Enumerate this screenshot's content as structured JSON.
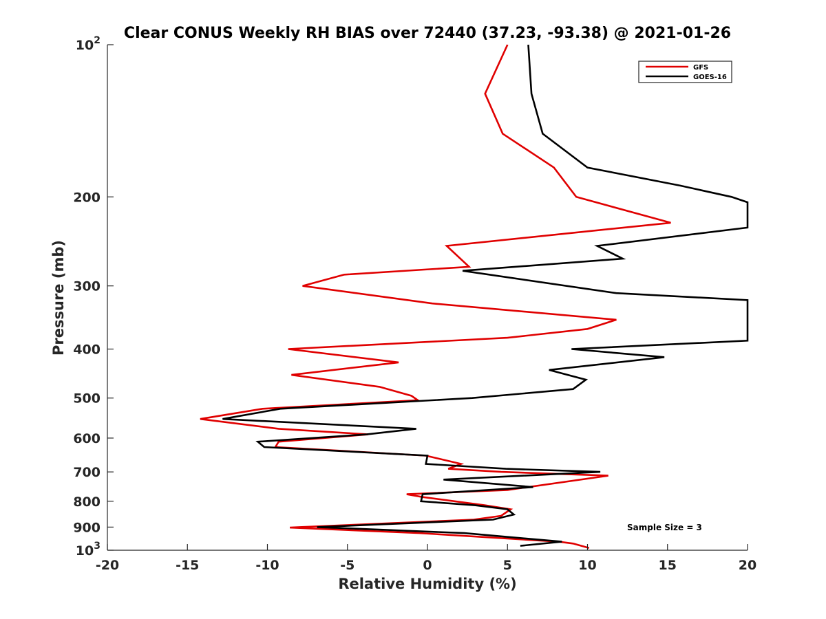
{
  "chart_data": {
    "type": "line",
    "title": "Clear CONUS Weekly RH BIAS over 72440 (37.23, -93.38) @ 2021-01-26",
    "xlabel": "Relative Humidity (%)",
    "ylabel": "Pressure (mb)",
    "xlim": [
      -20,
      20
    ],
    "ylim": [
      100,
      1000
    ],
    "y_scale": "log",
    "y_reversed": true,
    "x_ticks": [
      -20,
      -15,
      -10,
      -5,
      0,
      5,
      10,
      15,
      20
    ],
    "x_tick_labels": [
      "-20",
      "-15",
      "-10",
      "-5",
      "0",
      "5",
      "10",
      "15",
      "20"
    ],
    "y_ticks": [
      100,
      200,
      300,
      400,
      500,
      600,
      700,
      800,
      900,
      1000
    ],
    "y_tick_labels": [
      {
        "base": "10",
        "exp": "2"
      },
      {
        "base": "200",
        "exp": ""
      },
      {
        "base": "300",
        "exp": ""
      },
      {
        "base": "400",
        "exp": ""
      },
      {
        "base": "500",
        "exp": ""
      },
      {
        "base": "600",
        "exp": ""
      },
      {
        "base": "700",
        "exp": ""
      },
      {
        "base": "800",
        "exp": ""
      },
      {
        "base": "900",
        "exp": ""
      },
      {
        "base": "10",
        "exp": "3"
      }
    ],
    "grid": false,
    "legend_position": "top-right",
    "annotation": "Sample Size = 3",
    "series": [
      {
        "name": "GFS",
        "color": "#e00000",
        "points": [
          [
            5.0,
            100
          ],
          [
            3.6,
            125
          ],
          [
            4.7,
            150
          ],
          [
            7.9,
            175
          ],
          [
            9.3,
            200
          ],
          [
            15.2,
            225
          ],
          [
            1.2,
            250
          ],
          [
            2.6,
            275
          ],
          [
            -5.2,
            285
          ],
          [
            -7.8,
            300
          ],
          [
            0.3,
            325
          ],
          [
            11.8,
            350
          ],
          [
            10.0,
            365
          ],
          [
            5.0,
            380
          ],
          [
            -8.7,
            400
          ],
          [
            -1.8,
            425
          ],
          [
            -8.5,
            450
          ],
          [
            -3.0,
            475
          ],
          [
            -1.0,
            495
          ],
          [
            -0.6,
            505
          ],
          [
            -10.3,
            525
          ],
          [
            -14.2,
            550
          ],
          [
            -9.3,
            575
          ],
          [
            -3.7,
            590
          ],
          [
            -9.3,
            610
          ],
          [
            -9.5,
            625
          ],
          [
            -0.1,
            650
          ],
          [
            2.1,
            675
          ],
          [
            1.3,
            690
          ],
          [
            4.6,
            700
          ],
          [
            11.3,
            712
          ],
          [
            5.0,
            760
          ],
          [
            -1.3,
            775
          ],
          [
            -0.3,
            785
          ],
          [
            3.6,
            815
          ],
          [
            5.2,
            830
          ],
          [
            4.6,
            855
          ],
          [
            2.9,
            870
          ],
          [
            -8.6,
            902
          ],
          [
            -0.5,
            925
          ],
          [
            8.2,
            962
          ],
          [
            9.1,
            970
          ],
          [
            10.1,
            990
          ]
        ]
      },
      {
        "name": "GOES-16",
        "color": "#000000",
        "points": [
          [
            6.3,
            100
          ],
          [
            6.5,
            125
          ],
          [
            7.2,
            150
          ],
          [
            10.0,
            175
          ],
          [
            15.8,
            190
          ],
          [
            19.0,
            200
          ],
          [
            20.0,
            205
          ],
          [
            20.0,
            230
          ],
          [
            10.6,
            250
          ],
          [
            12.2,
            265
          ],
          [
            2.2,
            280
          ],
          [
            11.8,
            310
          ],
          [
            20.0,
            320
          ],
          [
            20.0,
            385
          ],
          [
            9.0,
            400
          ],
          [
            14.8,
            415
          ],
          [
            7.6,
            440
          ],
          [
            9.9,
            460
          ],
          [
            9.1,
            480
          ],
          [
            2.8,
            500
          ],
          [
            -9.2,
            525
          ],
          [
            -12.8,
            550
          ],
          [
            -0.7,
            575
          ],
          [
            -3.8,
            590
          ],
          [
            -10.6,
            610
          ],
          [
            -10.2,
            625
          ],
          [
            0.0,
            650
          ],
          [
            -0.1,
            675
          ],
          [
            4.9,
            690
          ],
          [
            10.8,
            700
          ],
          [
            1.0,
            725
          ],
          [
            6.6,
            750
          ],
          [
            -0.3,
            775
          ],
          [
            -0.4,
            800
          ],
          [
            3.0,
            815
          ],
          [
            5.0,
            830
          ],
          [
            5.4,
            850
          ],
          [
            4.1,
            870
          ],
          [
            -6.9,
            900
          ],
          [
            2.3,
            925
          ],
          [
            8.4,
            962
          ],
          [
            5.8,
            980
          ]
        ]
      }
    ]
  }
}
